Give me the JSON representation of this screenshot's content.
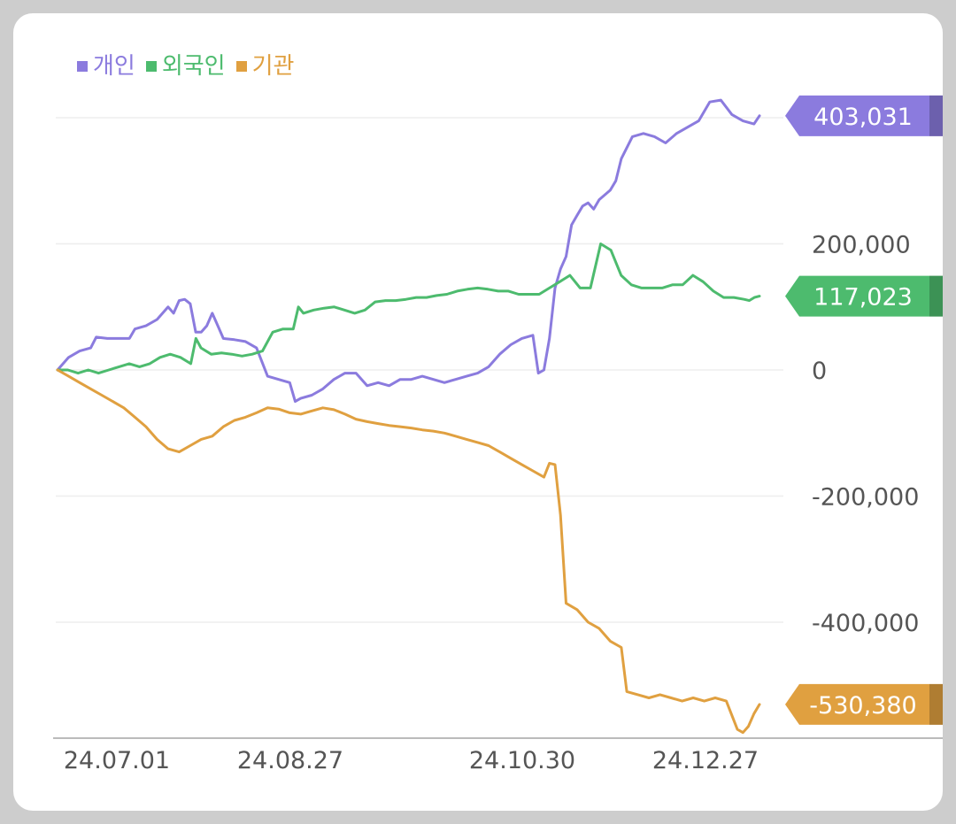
{
  "chart_data": {
    "type": "line",
    "title": "",
    "xlabel": "",
    "ylabel": "",
    "x_ticks": [
      "24.07.01",
      "24.08.27",
      "24.10.30",
      "24.12.27"
    ],
    "y_ticks": [
      {
        "value": 200000,
        "label": "200,000"
      },
      {
        "value": 0,
        "label": "0"
      },
      {
        "value": -200000,
        "label": "-200,000"
      },
      {
        "value": -400000,
        "label": "-400,000"
      }
    ],
    "ylim": [
      -580000,
      400000
    ],
    "grid": true,
    "legend_position": "top-left",
    "x_index_range": [
      0,
      100
    ],
    "series": [
      {
        "name": "개인",
        "color": "#8b7bde",
        "last_label": "403,031",
        "last_value": 403031,
        "points": [
          [
            0,
            0
          ],
          [
            2,
            20000
          ],
          [
            4,
            30000
          ],
          [
            6,
            35000
          ],
          [
            7,
            52000
          ],
          [
            9,
            50000
          ],
          [
            11,
            50000
          ],
          [
            13,
            50000
          ],
          [
            14,
            65000
          ],
          [
            16,
            70000
          ],
          [
            18,
            80000
          ],
          [
            20,
            100000
          ],
          [
            21,
            90000
          ],
          [
            22,
            110000
          ],
          [
            23,
            112000
          ],
          [
            24,
            105000
          ],
          [
            25,
            60000
          ],
          [
            26,
            60000
          ],
          [
            27,
            70000
          ],
          [
            28,
            90000
          ],
          [
            29,
            70000
          ],
          [
            30,
            50000
          ],
          [
            32,
            48000
          ],
          [
            34,
            45000
          ],
          [
            36,
            35000
          ],
          [
            38,
            -10000
          ],
          [
            40,
            -15000
          ],
          [
            42,
            -20000
          ],
          [
            43,
            -50000
          ],
          [
            44,
            -45000
          ],
          [
            46,
            -40000
          ],
          [
            48,
            -30000
          ],
          [
            50,
            -15000
          ],
          [
            52,
            -5000
          ],
          [
            54,
            -5000
          ],
          [
            56,
            -25000
          ],
          [
            58,
            -20000
          ],
          [
            60,
            -25000
          ],
          [
            62,
            -15000
          ],
          [
            64,
            -15000
          ],
          [
            66,
            -10000
          ],
          [
            68,
            -15000
          ],
          [
            70,
            -20000
          ],
          [
            72,
            -15000
          ],
          [
            74,
            -10000
          ],
          [
            76,
            -5000
          ],
          [
            78,
            5000
          ],
          [
            80,
            25000
          ],
          [
            82,
            40000
          ],
          [
            84,
            50000
          ],
          [
            86,
            55000
          ],
          [
            87,
            -5000
          ],
          [
            88,
            0
          ],
          [
            89,
            50000
          ],
          [
            90,
            130000
          ],
          [
            91,
            160000
          ],
          [
            92,
            180000
          ],
          [
            93,
            230000
          ],
          [
            94,
            245000
          ],
          [
            95,
            260000
          ],
          [
            96,
            265000
          ],
          [
            97,
            255000
          ],
          [
            98,
            270000
          ],
          [
            100,
            285000
          ],
          [
            101,
            300000
          ],
          [
            102,
            335000
          ],
          [
            104,
            370000
          ],
          [
            106,
            375000
          ],
          [
            108,
            370000
          ],
          [
            110,
            360000
          ],
          [
            112,
            375000
          ],
          [
            114,
            385000
          ],
          [
            116,
            395000
          ],
          [
            118,
            425000
          ],
          [
            120,
            428000
          ],
          [
            122,
            405000
          ],
          [
            124,
            395000
          ],
          [
            126,
            390000
          ],
          [
            127,
            403031
          ]
        ]
      },
      {
        "name": "외국인",
        "color": "#4dbb6e",
        "last_label": "117,023",
        "last_value": 117023,
        "points": [
          [
            0,
            0
          ],
          [
            2,
            0
          ],
          [
            4,
            -5000
          ],
          [
            6,
            0
          ],
          [
            8,
            -5000
          ],
          [
            10,
            0
          ],
          [
            12,
            5000
          ],
          [
            14,
            10000
          ],
          [
            16,
            5000
          ],
          [
            18,
            10000
          ],
          [
            20,
            20000
          ],
          [
            22,
            25000
          ],
          [
            24,
            20000
          ],
          [
            26,
            10000
          ],
          [
            27,
            50000
          ],
          [
            28,
            35000
          ],
          [
            30,
            25000
          ],
          [
            32,
            27000
          ],
          [
            34,
            25000
          ],
          [
            36,
            22000
          ],
          [
            38,
            25000
          ],
          [
            40,
            30000
          ],
          [
            42,
            60000
          ],
          [
            44,
            65000
          ],
          [
            46,
            65000
          ],
          [
            47,
            100000
          ],
          [
            48,
            90000
          ],
          [
            50,
            95000
          ],
          [
            52,
            98000
          ],
          [
            54,
            100000
          ],
          [
            56,
            95000
          ],
          [
            58,
            90000
          ],
          [
            60,
            95000
          ],
          [
            62,
            108000
          ],
          [
            64,
            110000
          ],
          [
            66,
            110000
          ],
          [
            68,
            112000
          ],
          [
            70,
            115000
          ],
          [
            72,
            115000
          ],
          [
            74,
            118000
          ],
          [
            76,
            120000
          ],
          [
            78,
            125000
          ],
          [
            80,
            128000
          ],
          [
            82,
            130000
          ],
          [
            84,
            128000
          ],
          [
            86,
            125000
          ],
          [
            88,
            125000
          ],
          [
            90,
            120000
          ],
          [
            92,
            120000
          ],
          [
            94,
            120000
          ],
          [
            96,
            130000
          ],
          [
            98,
            140000
          ],
          [
            100,
            150000
          ],
          [
            102,
            130000
          ],
          [
            104,
            130000
          ],
          [
            106,
            200000
          ],
          [
            108,
            190000
          ],
          [
            110,
            150000
          ],
          [
            112,
            135000
          ],
          [
            114,
            130000
          ],
          [
            116,
            130000
          ],
          [
            118,
            130000
          ],
          [
            120,
            135000
          ],
          [
            122,
            135000
          ],
          [
            124,
            150000
          ],
          [
            126,
            140000
          ],
          [
            128,
            125000
          ],
          [
            130,
            115000
          ],
          [
            132,
            115000
          ],
          [
            134,
            112000
          ],
          [
            135,
            110000
          ],
          [
            136,
            115000
          ],
          [
            137,
            117023
          ]
        ]
      },
      {
        "name": "기관",
        "color": "#e0a040",
        "last_label": "-530,380",
        "last_value": -530380,
        "points": [
          [
            0,
            0
          ],
          [
            2,
            -10000
          ],
          [
            4,
            -20000
          ],
          [
            6,
            -30000
          ],
          [
            8,
            -40000
          ],
          [
            10,
            -50000
          ],
          [
            12,
            -60000
          ],
          [
            14,
            -75000
          ],
          [
            16,
            -90000
          ],
          [
            18,
            -110000
          ],
          [
            20,
            -125000
          ],
          [
            22,
            -130000
          ],
          [
            24,
            -120000
          ],
          [
            26,
            -110000
          ],
          [
            28,
            -105000
          ],
          [
            30,
            -90000
          ],
          [
            32,
            -80000
          ],
          [
            34,
            -75000
          ],
          [
            36,
            -68000
          ],
          [
            38,
            -60000
          ],
          [
            40,
            -62000
          ],
          [
            42,
            -68000
          ],
          [
            44,
            -70000
          ],
          [
            46,
            -65000
          ],
          [
            48,
            -60000
          ],
          [
            50,
            -63000
          ],
          [
            52,
            -70000
          ],
          [
            54,
            -78000
          ],
          [
            56,
            -82000
          ],
          [
            58,
            -85000
          ],
          [
            60,
            -88000
          ],
          [
            62,
            -90000
          ],
          [
            64,
            -92000
          ],
          [
            66,
            -95000
          ],
          [
            68,
            -97000
          ],
          [
            70,
            -100000
          ],
          [
            72,
            -105000
          ],
          [
            74,
            -110000
          ],
          [
            76,
            -115000
          ],
          [
            78,
            -120000
          ],
          [
            80,
            -130000
          ],
          [
            82,
            -140000
          ],
          [
            84,
            -150000
          ],
          [
            86,
            -160000
          ],
          [
            88,
            -170000
          ],
          [
            89,
            -148000
          ],
          [
            90,
            -150000
          ],
          [
            91,
            -230000
          ],
          [
            92,
            -370000
          ],
          [
            94,
            -380000
          ],
          [
            96,
            -400000
          ],
          [
            98,
            -410000
          ],
          [
            100,
            -430000
          ],
          [
            102,
            -440000
          ],
          [
            103,
            -510000
          ],
          [
            105,
            -515000
          ],
          [
            107,
            -520000
          ],
          [
            109,
            -515000
          ],
          [
            111,
            -520000
          ],
          [
            113,
            -525000
          ],
          [
            115,
            -520000
          ],
          [
            117,
            -525000
          ],
          [
            119,
            -520000
          ],
          [
            121,
            -525000
          ],
          [
            123,
            -570000
          ],
          [
            124,
            -575000
          ],
          [
            125,
            -565000
          ],
          [
            126,
            -545000
          ],
          [
            127,
            -530380
          ]
        ]
      }
    ]
  }
}
